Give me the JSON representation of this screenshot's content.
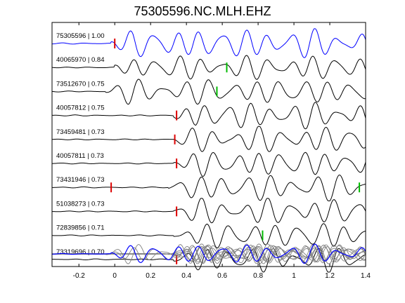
{
  "title": "75305596.NC.MLH.EHZ",
  "chart_data": {
    "type": "line",
    "title": "75305596.NC.MLH.EHZ",
    "xlim": [
      -0.35,
      1.4
    ],
    "xticks": [
      "-0.2",
      "0",
      "0.2",
      "0.4",
      "0.6",
      "0.8",
      "1",
      "1.2",
      "1.4"
    ],
    "xtick_values": [
      -0.2,
      0,
      0.2,
      0.4,
      0.6,
      0.8,
      1.0,
      1.2,
      1.4
    ],
    "grid": false,
    "traces": [
      {
        "label": "75305596 | 1.00",
        "color": "#0000ff",
        "onset": -0.02,
        "freq": 7.8,
        "amp": 0.42,
        "seed": 1,
        "picks": [
          {
            "x": 0.0,
            "color": "#dd0000"
          }
        ]
      },
      {
        "label": "40065970 | 0.84",
        "color": "#000000",
        "onset": 0.0,
        "freq": 8.0,
        "amp": 0.34,
        "seed": 2,
        "picks": [
          {
            "x": 0.625,
            "color": "#00bb00"
          }
        ]
      },
      {
        "label": "73512670 | 0.75",
        "color": "#000000",
        "onset": -0.05,
        "freq": 7.6,
        "amp": 0.36,
        "seed": 3,
        "picks": [
          {
            "x": 0.57,
            "color": "#00bb00"
          }
        ]
      },
      {
        "label": "40057812 | 0.75",
        "color": "#000000",
        "onset": 0.33,
        "freq": 8.2,
        "amp": 0.38,
        "seed": 4,
        "picks": [
          {
            "x": 0.345,
            "color": "#dd0000"
          }
        ]
      },
      {
        "label": "73459481 | 0.73",
        "color": "#000000",
        "onset": 0.33,
        "freq": 7.9,
        "amp": 0.37,
        "seed": 5,
        "picks": [
          {
            "x": 0.335,
            "color": "#dd0000"
          }
        ]
      },
      {
        "label": "40057811 | 0.73",
        "color": "#000000",
        "onset": 0.33,
        "freq": 8.1,
        "amp": 0.37,
        "seed": 6,
        "picks": [
          {
            "x": 0.345,
            "color": "#dd0000"
          }
        ]
      },
      {
        "label": "73431946 | 0.73",
        "color": "#000000",
        "onset": 0.3,
        "freq": 7.7,
        "amp": 0.38,
        "seed": 7,
        "picks": [
          {
            "x": -0.02,
            "color": "#dd0000"
          },
          {
            "x": 1.365,
            "color": "#00bb00"
          }
        ]
      },
      {
        "label": "51038273 | 0.73",
        "color": "#000000",
        "onset": 0.33,
        "freq": 8.0,
        "amp": 0.37,
        "seed": 8,
        "picks": [
          {
            "x": 0.345,
            "color": "#dd0000"
          }
        ]
      },
      {
        "label": "72839856 | 0.71",
        "color": "#000000",
        "onset": 0.33,
        "freq": 7.8,
        "amp": 0.37,
        "seed": 9,
        "picks": [
          {
            "x": 0.825,
            "color": "#00bb00"
          }
        ]
      },
      {
        "label": "73319696 | 0.70",
        "color": "#000000",
        "onset": 0.33,
        "freq": 8.1,
        "amp": 0.36,
        "seed": 10,
        "picks": [
          {
            "x": 0.345,
            "color": "#dd0000"
          }
        ]
      }
    ],
    "stack": {
      "color_overlay": "#808080",
      "color_reference": "#0000ff"
    }
  }
}
